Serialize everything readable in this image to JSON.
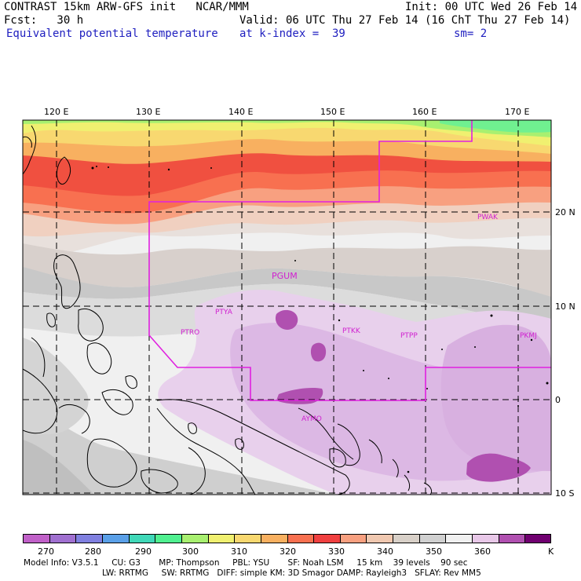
{
  "header": {
    "title_left": "CONTRAST 15km ARW-GFS init   NCAR/MMM",
    "init_text": "Init: 00 UTC Wed 26 Feb 14",
    "fcst_text": "Fcst:   30 h",
    "valid_text": "Valid: 06 UTC Thu 27 Feb 14 (16 ChT Thu 27 Feb 14)",
    "field_name": "Equivalent potential temperature",
    "level_text": "at k-index =  39",
    "smooth_text": "sm= 2"
  },
  "map": {
    "lon_labels": [
      "120 E",
      "130 E",
      "140 E",
      "150 E",
      "160 E",
      "170 E"
    ],
    "lat_labels": [
      "20 N",
      "10 N",
      "0",
      "10 S"
    ],
    "stations": [
      "PWAK",
      "PGUM",
      "PTYA",
      "PTRO",
      "PTKK",
      "PTPP",
      "PKMJ",
      "AYMO"
    ]
  },
  "colorbar": {
    "labels": [
      "270",
      "280",
      "290",
      "300",
      "310",
      "320",
      "330",
      "340",
      "350",
      "360"
    ],
    "unit": "K",
    "colors": [
      "#c060c8",
      "#a070d0",
      "#8080e0",
      "#5aa0e8",
      "#40d8b8",
      "#50f090",
      "#a8f070",
      "#f0f070",
      "#f8d870",
      "#f8b060",
      "#f87050",
      "#f04040",
      "#f8a080",
      "#f0c8b0",
      "#d8d0c8",
      "#d0d0d0",
      "#f0f0f0",
      "#e8c8e8",
      "#b050b0",
      "#700070"
    ]
  },
  "footer": {
    "line1": "Model Info: V3.5.1     CU: G3       MP: Thompson     PBL: YSU       SF: Noah LSM     15 km    39 levels    90 sec",
    "line2": "LW: RRTMG     SW: RRTMG   DIFF: simple KM: 3D Smagor DAMP: Rayleigh3   SFLAY: Rev MM5"
  }
}
